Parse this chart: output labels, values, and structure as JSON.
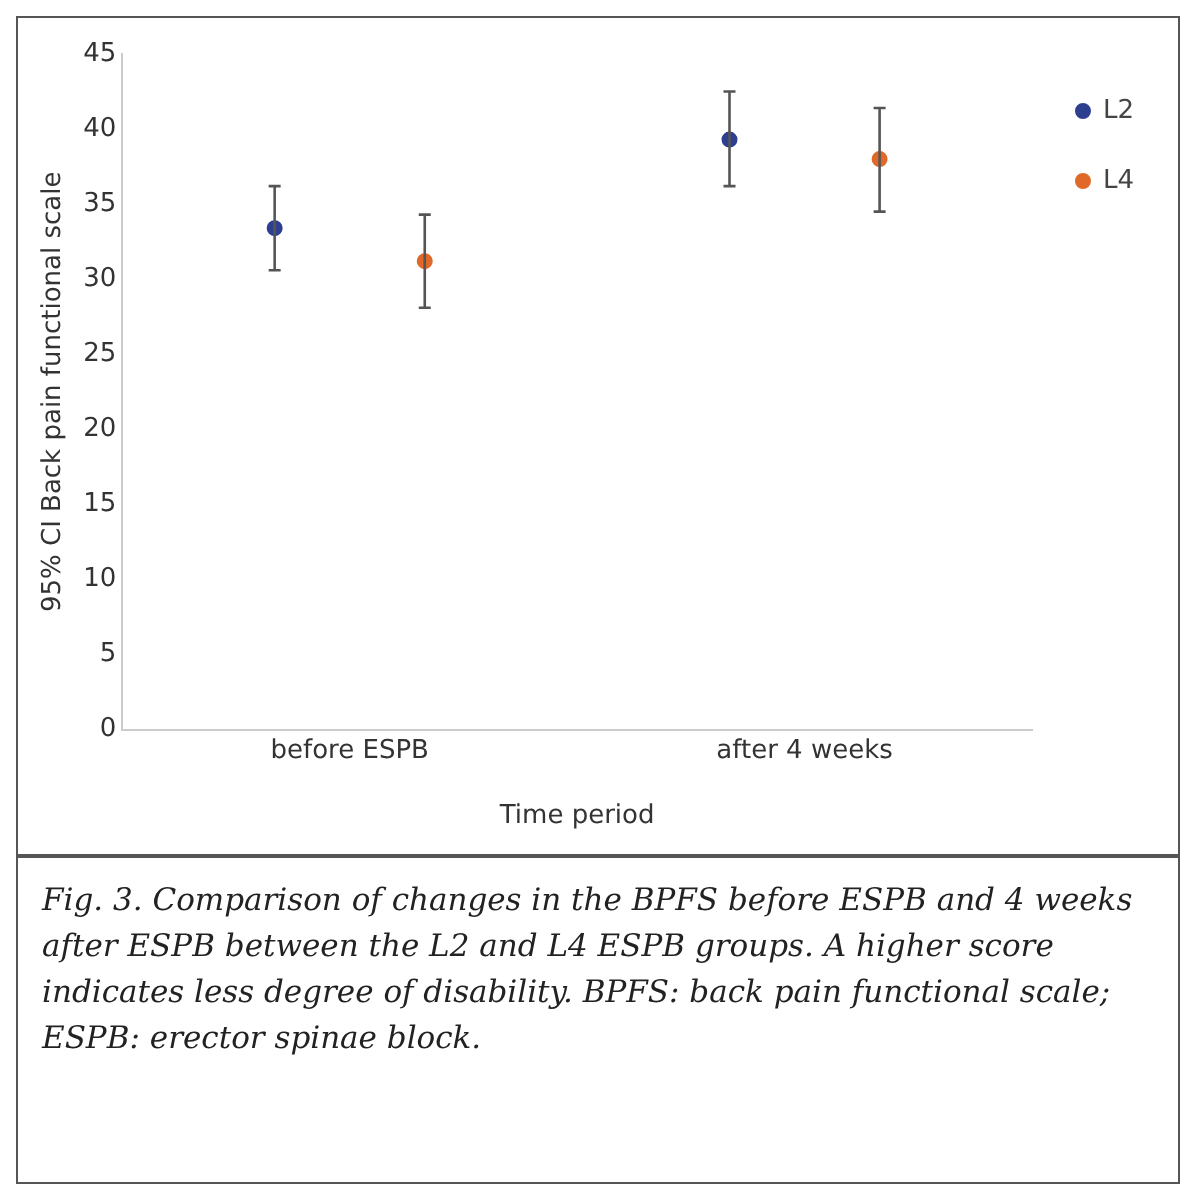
{
  "chart_data": {
    "type": "scatter",
    "xlabel": "Time period",
    "ylabel": "95% CI Back pain functional scale",
    "categories": [
      "before ESPB",
      "after 4 weeks"
    ],
    "series": [
      {
        "name": "L2",
        "color": "#2e3f8f",
        "values": [
          33.4,
          39.3
        ],
        "errors": [
          [
            30.6,
            36.2
          ],
          [
            36.2,
            42.5
          ]
        ]
      },
      {
        "name": "L4",
        "color": "#e0692a",
        "values": [
          31.2,
          38.0
        ],
        "errors": [
          [
            28.1,
            34.3
          ],
          [
            34.5,
            41.4
          ]
        ]
      }
    ],
    "ylim": [
      0,
      45
    ],
    "yticks": [
      0,
      5,
      10,
      15,
      20,
      25,
      30,
      35,
      40,
      45
    ],
    "grid": false,
    "legend": "top right",
    "marker": "circle",
    "annotations": [
      "Fig. 3. Comparison of changes in the BPFS before ESPB and 4 weeks after ESPB between the L2 and L4 ESPB groups. A higher score indicates less degree of disability. BPFS: back pain functional scale; ESPB: erector spinae block."
    ]
  }
}
